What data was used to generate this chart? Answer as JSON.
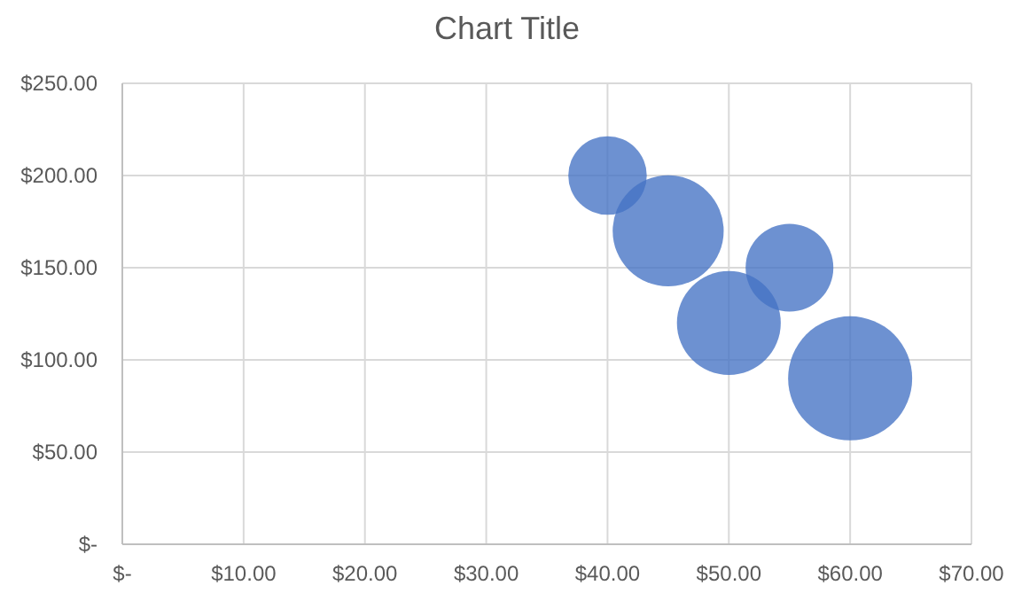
{
  "chart_data": {
    "type": "bubble",
    "title": "Chart Title",
    "x": [
      40,
      45,
      50,
      55,
      60
    ],
    "values": [
      200,
      170,
      120,
      150,
      90
    ],
    "sizes": [
      0.4,
      0.8,
      0.7,
      0.5,
      1
    ],
    "color": "#4472c4",
    "xlim": [
      0,
      70
    ],
    "xticks": [
      {
        "value": 0,
        "label": "$-"
      },
      {
        "value": 10,
        "label": "$10.00"
      },
      {
        "value": 20,
        "label": "$20.00"
      },
      {
        "value": 30,
        "label": "$30.00"
      },
      {
        "value": 40,
        "label": "$40.00"
      },
      {
        "value": 50,
        "label": "$50.00"
      },
      {
        "value": 60,
        "label": "$60.00"
      },
      {
        "value": 70,
        "label": "$70.00"
      }
    ],
    "ylim": [
      0,
      250
    ],
    "yticks": [
      {
        "value": 0,
        "label": "$-"
      },
      {
        "value": 50,
        "label": "$50.00"
      },
      {
        "value": 100,
        "label": "$100.00"
      },
      {
        "value": 150,
        "label": "$150.00"
      },
      {
        "value": 200,
        "label": "$200.00"
      },
      {
        "value": 250,
        "label": "$250.00"
      }
    ],
    "grid": true
  }
}
